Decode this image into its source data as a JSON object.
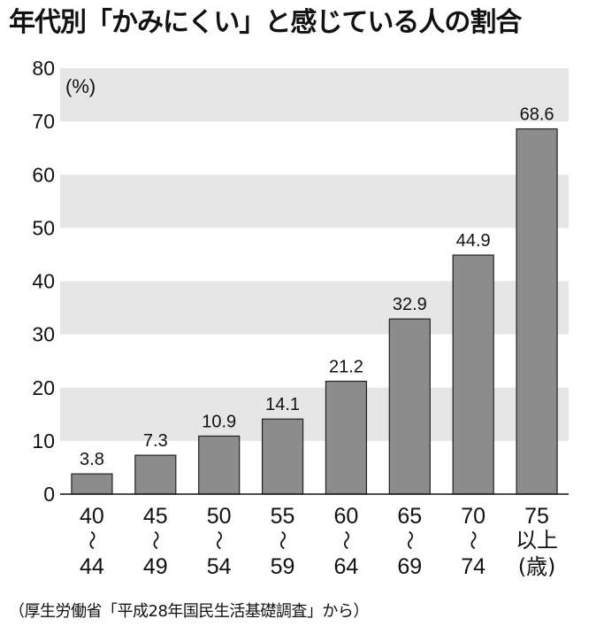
{
  "title": "年代別「かみにくい」と感じている人の割合",
  "footnote": "（厚生労働省「平成28年国民生活基礎調査」から）",
  "chart_data": {
    "type": "bar",
    "unit_label": "(%)",
    "categories": [
      {
        "lines": [
          "40",
          "〜",
          "44"
        ]
      },
      {
        "lines": [
          "45",
          "〜",
          "49"
        ]
      },
      {
        "lines": [
          "50",
          "〜",
          "54"
        ]
      },
      {
        "lines": [
          "55",
          "〜",
          "59"
        ]
      },
      {
        "lines": [
          "60",
          "〜",
          "64"
        ]
      },
      {
        "lines": [
          "65",
          "〜",
          "69"
        ]
      },
      {
        "lines": [
          "70",
          "〜",
          "74"
        ]
      },
      {
        "lines": [
          "75",
          "以上",
          "(歳)"
        ]
      }
    ],
    "values": [
      3.8,
      7.3,
      10.9,
      14.1,
      21.2,
      32.9,
      44.9,
      68.6
    ],
    "value_labels": [
      "3.8",
      "7.3",
      "10.9",
      "14.1",
      "21.2",
      "32.9",
      "44.9",
      "68.6"
    ],
    "ylim": [
      0,
      80
    ],
    "yticks": [
      0,
      10,
      20,
      30,
      40,
      50,
      60,
      70,
      80
    ],
    "banded_grid": true,
    "bar_color": "#8c8c8c",
    "band_color": "#e6e6e6"
  }
}
